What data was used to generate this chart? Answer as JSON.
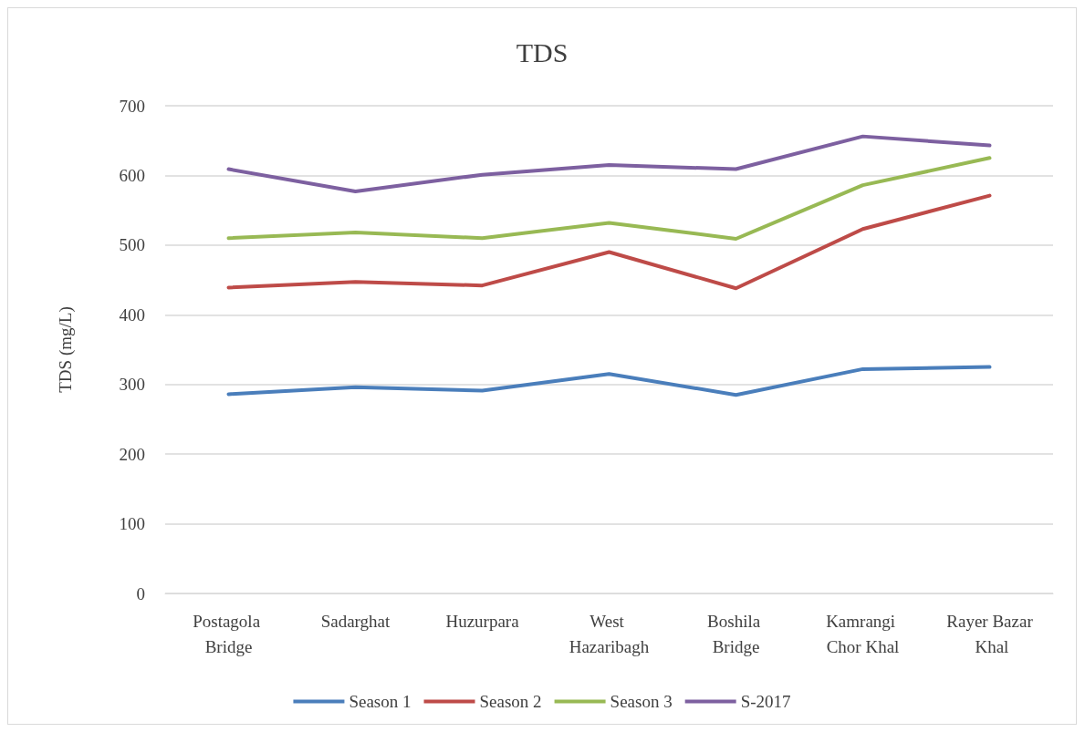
{
  "chart_data": {
    "type": "line",
    "title": "TDS",
    "ylabel": "TDS (mg/L)",
    "categories": [
      "Postagola Bridge",
      "Sadarghat",
      "Huzurpara",
      "West Hazaribagh",
      "Boshila Bridge",
      "Kamrangi Chor Khal",
      "Rayer Bazar Khal"
    ],
    "series": [
      {
        "name": "Season 1",
        "color": "#4a7ebb",
        "values": [
          286,
          296,
          291,
          315,
          285,
          322,
          325
        ]
      },
      {
        "name": "Season 2",
        "color": "#be4b48",
        "values": [
          439,
          447,
          442,
          490,
          438,
          523,
          571
        ]
      },
      {
        "name": "Season 3",
        "color": "#98b954",
        "values": [
          510,
          518,
          510,
          532,
          509,
          586,
          625
        ]
      },
      {
        "name": "S-2017",
        "color": "#7d60a0",
        "values": [
          609,
          577,
          601,
          615,
          609,
          656,
          643
        ]
      }
    ],
    "ylim": [
      0,
      700
    ],
    "yticks": [
      0,
      100,
      200,
      300,
      400,
      500,
      600,
      700
    ],
    "grid": "y",
    "legend": "bottom",
    "marker": "none",
    "line_style": "solid"
  }
}
